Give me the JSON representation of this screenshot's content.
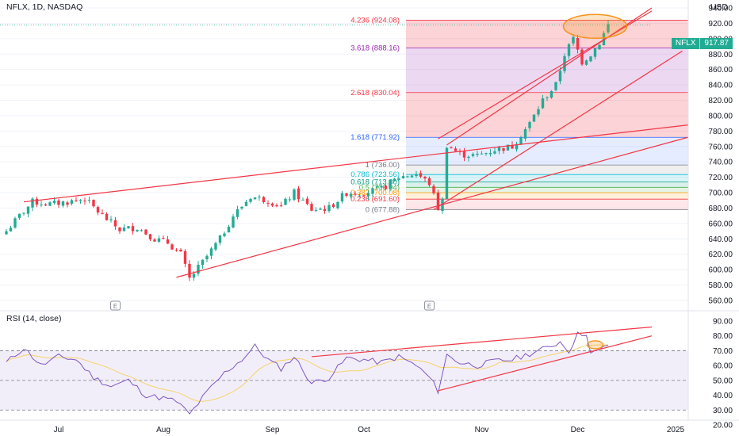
{
  "header": {
    "symbol_line": "NFLX, 1D, NASDAQ",
    "currency": "USD"
  },
  "price_tag": {
    "symbol": "NFLX",
    "value": "917.87"
  },
  "colors": {
    "up": "#22ab94",
    "down": "#f23645",
    "trend": "#f23645",
    "rsi": "#7e57c2",
    "rsi_ma": "#f5d36b",
    "circle": "#f7931a"
  },
  "chart_data": [
    {
      "type": "candlestick",
      "title": "NFLX, 1D, NASDAQ",
      "ylim": [
        560,
        940
      ],
      "y_ticks": [
        "940.00",
        "920.00",
        "900.00",
        "880.00",
        "860.00",
        "840.00",
        "820.00",
        "800.00",
        "780.00",
        "760.00",
        "740.00",
        "720.00",
        "700.00",
        "680.00",
        "660.00",
        "640.00",
        "620.00",
        "600.00",
        "580.00",
        "560.00"
      ],
      "x_ticks": [
        "Jul",
        "Aug",
        "Sep",
        "Oct",
        "Nov",
        "Dec",
        "2025"
      ],
      "last_price": 917.87,
      "anchor_points": [
        {
          "x": 0,
          "y": 650
        },
        {
          "x": 3,
          "y": 670
        },
        {
          "x": 6,
          "y": 688
        },
        {
          "x": 10,
          "y": 685
        },
        {
          "x": 14,
          "y": 688
        },
        {
          "x": 18,
          "y": 692
        },
        {
          "x": 22,
          "y": 670
        },
        {
          "x": 26,
          "y": 652
        },
        {
          "x": 30,
          "y": 655
        },
        {
          "x": 34,
          "y": 640
        },
        {
          "x": 37,
          "y": 635
        },
        {
          "x": 40,
          "y": 620
        },
        {
          "x": 42,
          "y": 588
        },
        {
          "x": 45,
          "y": 610
        },
        {
          "x": 49,
          "y": 640
        },
        {
          "x": 52,
          "y": 670
        },
        {
          "x": 56,
          "y": 695
        },
        {
          "x": 60,
          "y": 690
        },
        {
          "x": 63,
          "y": 682
        },
        {
          "x": 66,
          "y": 700
        },
        {
          "x": 70,
          "y": 678
        },
        {
          "x": 74,
          "y": 680
        },
        {
          "x": 78,
          "y": 700
        },
        {
          "x": 82,
          "y": 700
        },
        {
          "x": 86,
          "y": 705
        },
        {
          "x": 90,
          "y": 720
        },
        {
          "x": 94,
          "y": 725
        },
        {
          "x": 97,
          "y": 712
        },
        {
          "x": 99,
          "y": 680
        },
        {
          "x": 100,
          "y": 690
        },
        {
          "x": 101,
          "y": 762
        },
        {
          "x": 104,
          "y": 750
        },
        {
          "x": 108,
          "y": 748
        },
        {
          "x": 112,
          "y": 756
        },
        {
          "x": 116,
          "y": 760
        },
        {
          "x": 120,
          "y": 790
        },
        {
          "x": 123,
          "y": 820
        },
        {
          "x": 126,
          "y": 840
        },
        {
          "x": 128,
          "y": 880
        },
        {
          "x": 130,
          "y": 900
        },
        {
          "x": 132,
          "y": 870
        },
        {
          "x": 134,
          "y": 880
        },
        {
          "x": 136,
          "y": 895
        },
        {
          "x": 138,
          "y": 918
        }
      ],
      "fib_levels": [
        {
          "label": "4.236 (924.08)",
          "ratio": 4.236,
          "value": 924.08,
          "color": "#f23645"
        },
        {
          "label": "3.618 (888.16)",
          "ratio": 3.618,
          "value": 888.16,
          "color": "#9c27b0"
        },
        {
          "label": "2.618 (830.04)",
          "ratio": 2.618,
          "value": 830.04,
          "color": "#f23645"
        },
        {
          "label": "1.618 (771.92)",
          "ratio": 1.618,
          "value": 771.92,
          "color": "#2962ff"
        },
        {
          "label": "1 (736.00)",
          "ratio": 1,
          "value": 736.0,
          "color": "#787b86"
        },
        {
          "label": "0.786 (723.56)",
          "ratio": 0.786,
          "value": 723.56,
          "color": "#00bcd4"
        },
        {
          "label": "0.618 (713.80)",
          "ratio": 0.618,
          "value": 713.8,
          "color": "#089981"
        },
        {
          "label": "0.5 (706.94)",
          "ratio": 0.5,
          "value": 706.94,
          "color": "#4caf50"
        },
        {
          "label": "0.382 (700.08)",
          "ratio": 0.382,
          "value": 700.08,
          "color": "#ff9800"
        },
        {
          "label": "0.236 (691.60)",
          "ratio": 0.236,
          "value": 691.6,
          "color": "#f23645"
        },
        {
          "label": "0 (677.88)",
          "ratio": 0,
          "value": 677.88,
          "color": "#787b86"
        }
      ],
      "earnings_markers": [
        "E",
        "E"
      ]
    },
    {
      "type": "line",
      "title": "RSI (14, close)",
      "ylim": [
        20,
        90
      ],
      "y_ticks": [
        "90.00",
        "80.00",
        "70.00",
        "60.00",
        "50.00",
        "40.00",
        "30.00",
        "20.00"
      ],
      "band": [
        30,
        70
      ],
      "anchor_points": [
        {
          "x": 0,
          "y": 62
        },
        {
          "x": 4,
          "y": 72
        },
        {
          "x": 8,
          "y": 60
        },
        {
          "x": 12,
          "y": 66
        },
        {
          "x": 16,
          "y": 64
        },
        {
          "x": 20,
          "y": 52
        },
        {
          "x": 24,
          "y": 46
        },
        {
          "x": 28,
          "y": 50
        },
        {
          "x": 32,
          "y": 40
        },
        {
          "x": 36,
          "y": 38
        },
        {
          "x": 39,
          "y": 36
        },
        {
          "x": 42,
          "y": 27
        },
        {
          "x": 46,
          "y": 42
        },
        {
          "x": 50,
          "y": 55
        },
        {
          "x": 54,
          "y": 64
        },
        {
          "x": 57,
          "y": 73
        },
        {
          "x": 60,
          "y": 64
        },
        {
          "x": 63,
          "y": 58
        },
        {
          "x": 66,
          "y": 66
        },
        {
          "x": 70,
          "y": 48
        },
        {
          "x": 74,
          "y": 52
        },
        {
          "x": 78,
          "y": 65
        },
        {
          "x": 82,
          "y": 64
        },
        {
          "x": 86,
          "y": 62
        },
        {
          "x": 90,
          "y": 66
        },
        {
          "x": 94,
          "y": 60
        },
        {
          "x": 97,
          "y": 52
        },
        {
          "x": 99,
          "y": 43
        },
        {
          "x": 101,
          "y": 67
        },
        {
          "x": 104,
          "y": 62
        },
        {
          "x": 108,
          "y": 60
        },
        {
          "x": 112,
          "y": 63
        },
        {
          "x": 116,
          "y": 64
        },
        {
          "x": 120,
          "y": 68
        },
        {
          "x": 124,
          "y": 72
        },
        {
          "x": 127,
          "y": 76
        },
        {
          "x": 129,
          "y": 70
        },
        {
          "x": 131,
          "y": 81
        },
        {
          "x": 133,
          "y": 82
        },
        {
          "x": 134,
          "y": 68
        },
        {
          "x": 136,
          "y": 70
        },
        {
          "x": 138,
          "y": 74
        }
      ]
    }
  ]
}
